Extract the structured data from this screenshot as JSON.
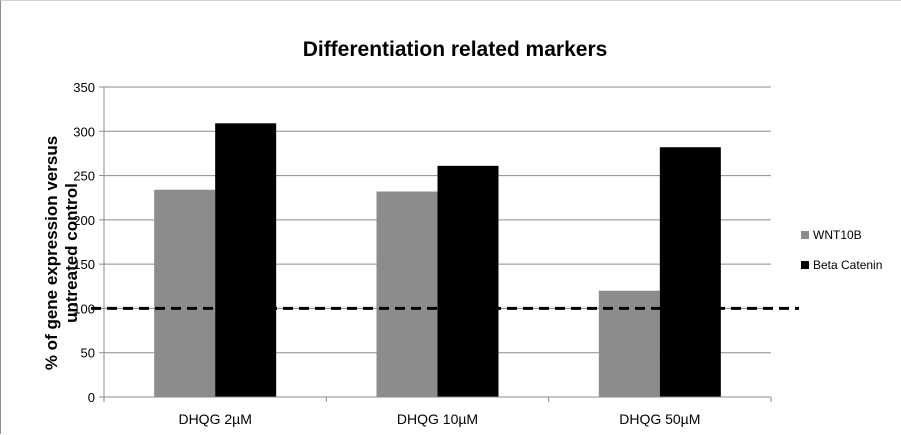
{
  "chart_data": {
    "type": "bar",
    "title": "Differentiation related markers",
    "ylabel": "% of gene expression versus untreated control",
    "ylabel_lines": [
      "% of gene expression versus",
      "untreated control"
    ],
    "xlabel": "",
    "categories": [
      "DHQG 2µM",
      "DHQG 10µM",
      "DHQG 50µM"
    ],
    "ylim": [
      0,
      350
    ],
    "yticks": [
      0,
      50,
      100,
      150,
      200,
      250,
      300,
      350
    ],
    "grid": true,
    "legend_position": "right",
    "reference_line": {
      "value": 100,
      "style": "dashed"
    },
    "series": [
      {
        "name": "WNT10B",
        "color": "#8c8c8c",
        "values": [
          234,
          232,
          120
        ]
      },
      {
        "name": "Beta Catenin",
        "color": "#000000",
        "values": [
          309,
          261,
          282
        ]
      }
    ]
  }
}
